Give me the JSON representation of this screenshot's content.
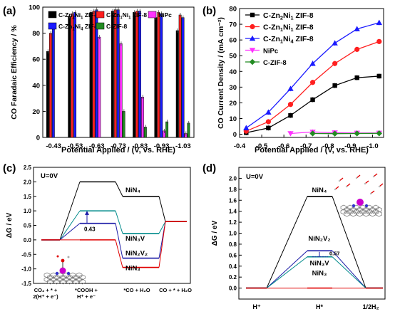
{
  "colors": {
    "c_zn2ni1": "#000000",
    "c_zn1ni1": "#ff1f1f",
    "nipc": "#ff33ff",
    "c_zn1ni4": "#1a1aff",
    "c_zif8": "#228b22",
    "teal": "#008b8b",
    "navy": "#1a1aa6",
    "red": "#e00000"
  },
  "panel_labels": {
    "a": "(a)",
    "b": "(b)",
    "c": "(c)",
    "d": "(d)"
  },
  "chart_data": [
    {
      "type": "bar",
      "panel": "a",
      "ylabel": "CO Faradaic Efficiency / %",
      "xlabel": "Potential Applied / (V, vs. RHE)",
      "categories": [
        "-0.43",
        "-0.53",
        "-0.63",
        "-0.73",
        "-0.83",
        "-0.93",
        "-1.03"
      ],
      "ylim": [
        0,
        100
      ],
      "yticks": [
        "0",
        "20",
        "40",
        "60",
        "80",
        "100"
      ],
      "series": [
        {
          "name": "C-Zn2Ni1 ZIF-8",
          "color_key": "c_zn2ni1",
          "values": [
            66,
            93,
            96,
            97,
            96,
            92,
            82
          ]
        },
        {
          "name": "C-Zn1Ni1 ZIF-8",
          "color_key": "c_zn1ni1",
          "values": [
            80,
            95,
            97,
            98,
            97,
            96,
            94
          ]
        },
        {
          "name": "C-Zn1Ni4 ZIF-8",
          "color_key": "c_zn1ni4",
          "values": [
            85,
            96,
            98,
            98,
            97,
            95,
            92
          ]
        },
        {
          "name": "NiPc",
          "color_key": "nipc",
          "values": [
            0,
            0,
            77,
            72,
            31,
            5,
            3
          ]
        },
        {
          "name": "C-ZIF-8",
          "color_key": "c_zif8",
          "values": [
            0,
            0,
            0,
            20,
            8,
            12,
            11
          ]
        }
      ],
      "legend": [
        {
          "text": "C-Zn",
          "sub1": "2",
          "mid": "Ni",
          "sub2": "1",
          "tail": " ZIF-8",
          "color_key": "c_zn2ni1"
        },
        {
          "text": "C-Zn",
          "sub1": "1",
          "mid": "Ni",
          "sub2": "1",
          "tail": " ZIF-8",
          "color_key": "c_zn1ni1"
        },
        {
          "text": "NiPc",
          "sub1": "",
          "mid": "",
          "sub2": "",
          "tail": "",
          "color_key": "nipc"
        },
        {
          "text": "C-Zn",
          "sub1": "1",
          "mid": "Ni",
          "sub2": "4",
          "tail": " ZIF-8",
          "color_key": "c_zn1ni4"
        },
        {
          "text": "C-ZIF-8",
          "sub1": "",
          "mid": "",
          "sub2": "",
          "tail": "",
          "color_key": "c_zif8"
        }
      ]
    },
    {
      "type": "line",
      "panel": "b",
      "ylabel": "CO Current Density / (mA cm⁻²)",
      "xlabel": "Potential Applied / (V, vs. RHE)",
      "x": [
        -0.43,
        -0.53,
        -0.63,
        -0.73,
        -0.83,
        -0.93,
        -1.03
      ],
      "xlim": [
        -0.4,
        -1.05
      ],
      "ylim": [
        -2,
        80
      ],
      "xticks": [
        "-0.4",
        "-0.5",
        "-0.6",
        "-0.7",
        "-0.8",
        "-0.9",
        "-1.0"
      ],
      "yticks": [
        "0",
        "10",
        "20",
        "30",
        "40",
        "50",
        "60",
        "70",
        "80"
      ],
      "series": [
        {
          "name": "C-Zn2Ni1 ZIF-8",
          "color_key": "c_zn2ni1",
          "marker": "square",
          "values": [
            1,
            4,
            12,
            22,
            31,
            36,
            37
          ]
        },
        {
          "name": "C-Zn1Ni1 ZIF-8",
          "color_key": "c_zn1ni1",
          "marker": "circle",
          "values": [
            2,
            8,
            19,
            33,
            45,
            54,
            59
          ]
        },
        {
          "name": "C-Zn1Ni4 ZIF-8",
          "color_key": "c_zn1ni4",
          "marker": "triangle",
          "values": [
            4,
            14,
            29,
            45,
            58,
            67,
            71
          ]
        },
        {
          "name": "NiPc",
          "color_key": "nipc",
          "marker": "tri-down",
          "values": [
            null,
            null,
            0.5,
            1.5,
            1,
            0.8,
            0.8
          ]
        },
        {
          "name": "C-ZIF-8",
          "color_key": "c_zif8",
          "marker": "diamond",
          "values": [
            null,
            null,
            null,
            0.5,
            0.4,
            0.5,
            0.6
          ]
        }
      ],
      "legend": [
        {
          "text": "C-Zn",
          "sub1": "2",
          "mid": "Ni",
          "sub2": "1",
          "tail": " ZIF-8",
          "color_key": "c_zn2ni1",
          "marker": "square"
        },
        {
          "text": "C-Zn",
          "sub1": "1",
          "mid": "Ni",
          "sub2": "1",
          "tail": " ZIF-8",
          "color_key": "c_zn1ni1",
          "marker": "circle"
        },
        {
          "text": "C-Zn",
          "sub1": "1",
          "mid": "Ni",
          "sub2": "4",
          "tail": " ZIF-8",
          "color_key": "c_zn1ni4",
          "marker": "triangle"
        },
        {
          "text": "NiPc",
          "sub1": "",
          "mid": "",
          "sub2": "",
          "tail": "",
          "color_key": "nipc",
          "marker": "tri-down"
        },
        {
          "text": "C-ZIF-8",
          "sub1": "",
          "mid": "",
          "sub2": "",
          "tail": "",
          "color_key": "c_zif8",
          "marker": "diamond"
        }
      ]
    },
    {
      "type": "line",
      "panel": "c",
      "condition": "U=0V",
      "ylabel": "ΔG / eV",
      "ylim": [
        -1.5,
        2.5
      ],
      "yticks": [
        "-1.5",
        "-1.0",
        "-0.5",
        "0.0",
        "0.5",
        "1.0",
        "1.5",
        "2.0",
        "2.5"
      ],
      "states": [
        "CO₂ + * + 2(H⁺ + e⁻)",
        "*COOH + H⁺ + e⁻",
        "*CO + H₂O",
        "CO + * + H₂O"
      ],
      "series": [
        {
          "name": "NiN₄",
          "color_key": "c_zn2ni1",
          "values": [
            0,
            2.0,
            1.5,
            0.63
          ]
        },
        {
          "name": "NiN₃V",
          "color_key": "teal",
          "values": [
            0,
            1.0,
            0.22,
            0.63
          ]
        },
        {
          "name": "NiN₂V₂",
          "color_key": "navy",
          "values": [
            0,
            0.57,
            -0.63,
            0.63
          ]
        },
        {
          "name": "NiN₃",
          "color_key": "red",
          "values": [
            0,
            0.0,
            -0.95,
            0.63
          ]
        }
      ],
      "annotation": "0.43"
    },
    {
      "type": "line",
      "panel": "d",
      "condition": "U=0V",
      "ylabel": "ΔG / eV",
      "ylim": [
        -0.2,
        2.2
      ],
      "yticks": [
        "0.0",
        "0.2",
        "0.4",
        "0.6",
        "0.8",
        "1.0",
        "1.2",
        "1.4",
        "1.6",
        "1.8",
        "2.0"
      ],
      "states": [
        "H⁺",
        "H*",
        "1/2H₂"
      ],
      "series": [
        {
          "name": "NiN₄",
          "color_key": "c_zn2ni1",
          "values": [
            0,
            1.67,
            0
          ]
        },
        {
          "name": "NiN₂V₂",
          "color_key": "navy",
          "values": [
            0,
            0.68,
            0
          ]
        },
        {
          "name": "NiN₃V",
          "color_key": "teal",
          "values": [
            0,
            0.57,
            0
          ]
        },
        {
          "name": "NiN₃",
          "color_key": "red",
          "values": [
            0,
            0.0,
            0
          ]
        }
      ],
      "annotation": "0.57"
    }
  ]
}
